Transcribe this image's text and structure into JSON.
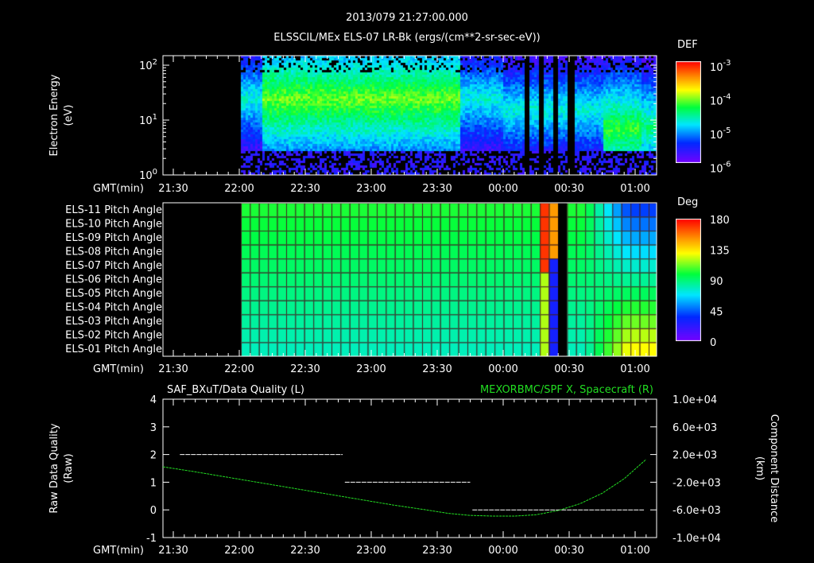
{
  "header": {
    "timestamp": "2013/079 21:27:00.000",
    "title": "ELSSCIL/MEx ELS-07 LR-Bk  (ergs/(cm**2-sr-sec-eV))"
  },
  "time_axis": {
    "label": "GMT(min)",
    "ticks": [
      "21:30",
      "22:00",
      "22:30",
      "23:00",
      "23:30",
      "00:00",
      "00:30",
      "01:00"
    ],
    "tick_minutes": [
      0,
      30,
      60,
      90,
      120,
      150,
      180,
      210
    ]
  },
  "chart_data": [
    {
      "type": "heatmap",
      "name": "electron-spectrogram",
      "ylabel": [
        "Electron Energy",
        "(eV)"
      ],
      "yscale": "log",
      "ylim": [
        1,
        145
      ],
      "yticks": [
        {
          "base": "10",
          "exp": "0"
        },
        {
          "base": "10",
          "exp": "1"
        },
        {
          "base": "10",
          "exp": "2"
        }
      ],
      "data_start": "22:00",
      "colorbar": {
        "title": "DEF",
        "ticks": [
          {
            "base": "10",
            "exp": "-3"
          },
          {
            "base": "10",
            "exp": "-4"
          },
          {
            "base": "10",
            "exp": "-5"
          },
          {
            "base": "10",
            "exp": "-6"
          }
        ],
        "range": [
          1e-06,
          0.001
        ]
      }
    },
    {
      "type": "heatmap",
      "name": "pitch-angle",
      "rows": [
        "ELS-11 Pitch Angle",
        "ELS-10 Pitch Angle",
        "ELS-09 Pitch Angle",
        "ELS-08 Pitch Angle",
        "ELS-07 Pitch Angle",
        "ELS-06 Pitch Angle",
        "ELS-05 Pitch Angle",
        "ELS-04 Pitch Angle",
        "ELS-03 Pitch Angle",
        "ELS-02 Pitch Angle",
        "ELS-01 Pitch Angle"
      ],
      "data_start": "22:00",
      "colorbar": {
        "title": "Deg",
        "ticks": [
          "180",
          "135",
          "90",
          "45",
          "0"
        ],
        "range": [
          0,
          180
        ]
      }
    },
    {
      "type": "line",
      "name": "quality-and-distance",
      "left_title": "SAF_BXuT/Data Quality (L)",
      "right_title": "MEXORBMC/SPF X, Spacecraft (R)",
      "ylabel_left": [
        "Raw Data Quality",
        "(Raw)"
      ],
      "ylabel_right": [
        "Component Distance",
        "(km)"
      ],
      "ylim_left": [
        -1,
        4
      ],
      "yticks_left": [
        "4",
        "3",
        "2",
        "1",
        "0",
        "-1"
      ],
      "ylim_right": [
        -10000,
        10000
      ],
      "yticks_right": [
        "1.0e+04",
        "6.0e+03",
        "2.0e+03",
        "-2.0e+03",
        "-6.0e+03",
        "-1.0e+04"
      ],
      "series": [
        {
          "name": "Data Quality",
          "color": "#ffffff",
          "segments": [
            {
              "from_min": 3,
              "to_min": 77,
              "value": 2
            },
            {
              "from_min": 78,
              "to_min": 135,
              "value": 1
            },
            {
              "from_min": 136,
              "to_min": 214,
              "value": 0
            }
          ]
        },
        {
          "name": "Spacecraft X (km)",
          "color": "#22dd22",
          "minutes": [
            -5,
            10,
            25,
            40,
            55,
            70,
            85,
            100,
            115,
            125,
            135,
            145,
            155,
            165,
            175,
            185,
            195,
            205,
            215
          ],
          "values": [
            230,
            -500,
            -1300,
            -2100,
            -2900,
            -3700,
            -4500,
            -5300,
            -6000,
            -6500,
            -6800,
            -6900,
            -6900,
            -6700,
            -6100,
            -5100,
            -3600,
            -1500,
            1300
          ]
        }
      ]
    }
  ]
}
